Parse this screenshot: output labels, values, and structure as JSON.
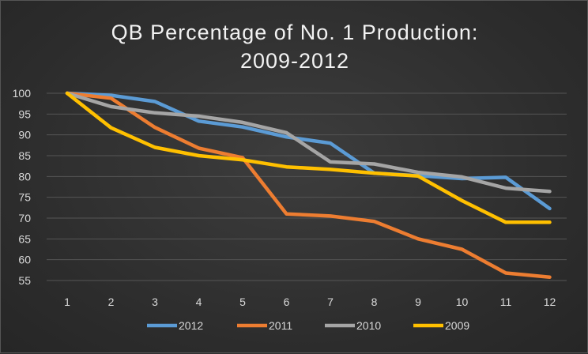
{
  "chart_data": {
    "type": "line",
    "title_lines": [
      "QB Percentage of No. 1 Production:",
      "2009-2012"
    ],
    "x": [
      1,
      2,
      3,
      4,
      5,
      6,
      7,
      8,
      9,
      10,
      11,
      12
    ],
    "ylim": [
      55,
      100
    ],
    "yticks": [
      55,
      60,
      65,
      70,
      75,
      80,
      85,
      90,
      95,
      100
    ],
    "grid": true,
    "legend": "bottom",
    "series": [
      {
        "name": "2012",
        "color": "#5b9bd5",
        "values": [
          100,
          99.5,
          98,
          93.3,
          91.9,
          89.5,
          88,
          80.8,
          80.2,
          79.5,
          79.8,
          72.3
        ]
      },
      {
        "name": "2011",
        "color": "#ed7d31",
        "values": [
          100,
          98.8,
          91.8,
          86.8,
          84.5,
          71,
          70.5,
          69.2,
          65,
          62.5,
          56.8,
          55.8
        ]
      },
      {
        "name": "2010",
        "color": "#a5a5a5",
        "values": [
          100,
          96.8,
          95.3,
          94.5,
          93,
          90.5,
          83.5,
          83,
          81,
          79.9,
          77.2,
          76.4
        ]
      },
      {
        "name": "2009",
        "color": "#ffc000",
        "values": [
          100,
          91.7,
          87,
          85,
          84,
          82.3,
          81.7,
          80.8,
          80.1,
          74.2,
          69,
          69
        ]
      }
    ]
  }
}
